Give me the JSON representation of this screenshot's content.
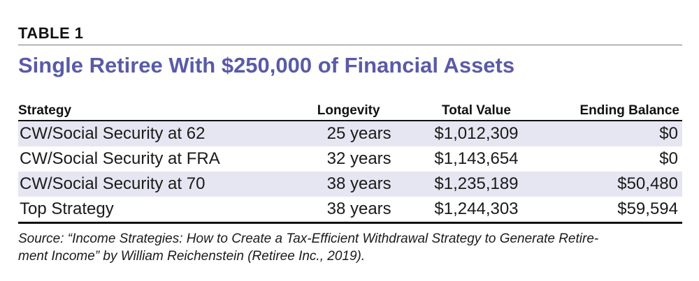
{
  "table_label": "TABLE 1",
  "title": "Single Retiree With $250,000 of Financial Assets",
  "columns": {
    "strategy": "Strategy",
    "longevity": "Longevity",
    "total_value": "Total Value",
    "ending_balance": "Ending Balance"
  },
  "rows": [
    {
      "strategy": "CW/Social Security at 62",
      "longevity": "25 years",
      "total_value": "$1,012,309",
      "ending_balance": "$0"
    },
    {
      "strategy": "CW/Social Security at FRA",
      "longevity": "32 years",
      "total_value": "$1,143,654",
      "ending_balance": "$0"
    },
    {
      "strategy": "CW/Social Security at 70",
      "longevity": "38 years",
      "total_value": "$1,235,189",
      "ending_balance": "$50,480"
    },
    {
      "strategy": "Top Strategy",
      "longevity": "38 years",
      "total_value": "$1,244,303",
      "ending_balance": "$59,594"
    }
  ],
  "source": {
    "line1": "Source: “Income Strategies: How to Create a Tax-Efficient Withdrawal Strategy to Generate Retire-",
    "line2": "ment Income” by William Reichenstein (Retiree Inc., 2019)."
  },
  "colors": {
    "title": "#5a5aa8",
    "row_band": "#e6e6f2",
    "rule": "#111111"
  }
}
